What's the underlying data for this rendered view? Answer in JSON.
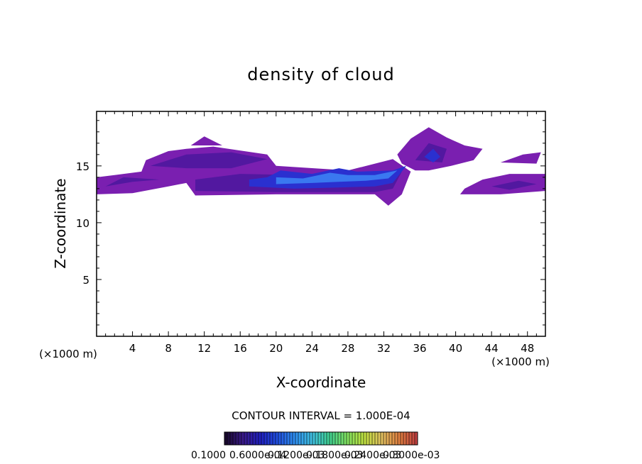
{
  "chart_data": {
    "type": "heatmap",
    "title": "density of cloud",
    "xlabel": "X-coordinate",
    "ylabel": "Z-coordinate",
    "x_unit_left": "(×1000 m)",
    "x_unit_right": "(×1000 m)",
    "xlim": [
      0,
      50
    ],
    "ylim": [
      0,
      19.8
    ],
    "xticks": [
      4,
      8,
      12,
      16,
      20,
      24,
      28,
      32,
      36,
      40,
      44,
      48
    ],
    "yticks": [
      5,
      10,
      15
    ],
    "contour_interval_label": "CONTOUR INTERVAL = 1.000E-04",
    "colorbar_labels": [
      "0.1000",
      "0.6000e-04",
      "0.1200e-03",
      "0.1800e-03",
      "0.2400e-03",
      "0.3000e-03"
    ],
    "colorbar_colors": [
      "#1a0a2e",
      "#3a1a8a",
      "#2020c0",
      "#2050e0",
      "#3090f0",
      "#40c0e0",
      "#40d090",
      "#80e060",
      "#c0e040",
      "#e0c060",
      "#e08040",
      "#c04040"
    ],
    "legend_placement": "bottom-center",
    "grid": false,
    "series": [
      {
        "value": 3e-05,
        "color": "#7a1fb0",
        "regions": [
          [
            [
              0,
              12.5
            ],
            [
              4,
              12.6
            ],
            [
              8,
              13.2
            ],
            [
              10,
              13.5
            ],
            [
              11,
              12.4
            ],
            [
              20,
              12.5
            ],
            [
              31,
              12.5
            ],
            [
              32.5,
              11.5
            ],
            [
              34,
              12.5
            ],
            [
              35,
              14.5
            ],
            [
              33,
              15.6
            ],
            [
              28,
              14.6
            ],
            [
              20,
              15
            ],
            [
              19,
              16
            ],
            [
              13,
              16.7
            ],
            [
              10,
              16.5
            ],
            [
              8,
              16.3
            ],
            [
              5.5,
              15.5
            ],
            [
              5,
              14.5
            ],
            [
              2,
              14.2
            ],
            [
              0,
              14
            ]
          ],
          [
            [
              33.5,
              16
            ],
            [
              35,
              17.4
            ],
            [
              37,
              18.4
            ],
            [
              39,
              17.5
            ],
            [
              41,
              16.8
            ],
            [
              43,
              16.5
            ],
            [
              42,
              15.5
            ],
            [
              39.5,
              15
            ],
            [
              37,
              14.6
            ],
            [
              35.5,
              14.6
            ],
            [
              34,
              15.2
            ]
          ],
          [
            [
              40.5,
              12.5
            ],
            [
              45,
              12.5
            ],
            [
              50,
              12.8
            ],
            [
              50,
              14.3
            ],
            [
              46,
              14.3
            ],
            [
              43,
              13.8
            ],
            [
              41,
              13
            ]
          ],
          [
            [
              45,
              15.3
            ],
            [
              47.5,
              16
            ],
            [
              49.5,
              16.2
            ],
            [
              49,
              15.2
            ]
          ],
          [
            [
              10.5,
              16.8
            ],
            [
              12,
              17.6
            ],
            [
              14,
              16.8
            ]
          ]
        ]
      },
      {
        "value": 6e-05,
        "color": "#5218a0",
        "regions": [
          [
            [
              11,
              12.8
            ],
            [
              20,
              12.7
            ],
            [
              31,
              12.7
            ],
            [
              33,
              13
            ],
            [
              34,
              14.5
            ],
            [
              30,
              14.4
            ],
            [
              22,
              14.2
            ],
            [
              16,
              14.3
            ],
            [
              11,
              13.8
            ]
          ],
          [
            [
              6,
              15
            ],
            [
              10,
              16
            ],
            [
              15,
              16.2
            ],
            [
              19,
              15.6
            ],
            [
              15,
              14.8
            ],
            [
              10,
              14.8
            ]
          ],
          [
            [
              35.5,
              15.5
            ],
            [
              37,
              17
            ],
            [
              39,
              16.5
            ],
            [
              38.5,
              15.3
            ]
          ],
          [
            [
              44,
              13.2
            ],
            [
              47,
              13.7
            ],
            [
              49,
              13.4
            ],
            [
              46,
              12.9
            ]
          ],
          [
            [
              1,
              13.2
            ],
            [
              4,
              13.6
            ],
            [
              7,
              13.8
            ],
            [
              3,
              14
            ]
          ]
        ]
      },
      {
        "value": 9e-05,
        "color": "#2a30d0",
        "regions": [
          [
            [
              17,
              13.2
            ],
            [
              22,
              13
            ],
            [
              27,
              13.1
            ],
            [
              31,
              13.2
            ],
            [
              33,
              13.5
            ],
            [
              34.5,
              15
            ],
            [
              33,
              14.6
            ],
            [
              29,
              14.5
            ],
            [
              27,
              14.8
            ],
            [
              24,
              14.3
            ],
            [
              20.5,
              14.6
            ],
            [
              19,
              14
            ],
            [
              17,
              13.8
            ]
          ],
          [
            [
              36.5,
              15.8
            ],
            [
              37.5,
              16.5
            ],
            [
              38.3,
              15.8
            ],
            [
              37.5,
              15.3
            ]
          ]
        ]
      },
      {
        "value": 0.00012,
        "color": "#3a78f0",
        "regions": [
          [
            [
              20,
              13.4
            ],
            [
              24,
              13.5
            ],
            [
              27,
              13.6
            ],
            [
              30,
              13.7
            ],
            [
              32.5,
              13.9
            ],
            [
              33.5,
              14.6
            ],
            [
              31,
              14.2
            ],
            [
              28,
              14.2
            ],
            [
              26,
              14.4
            ],
            [
              23,
              13.9
            ],
            [
              20,
              14
            ]
          ]
        ]
      }
    ]
  }
}
